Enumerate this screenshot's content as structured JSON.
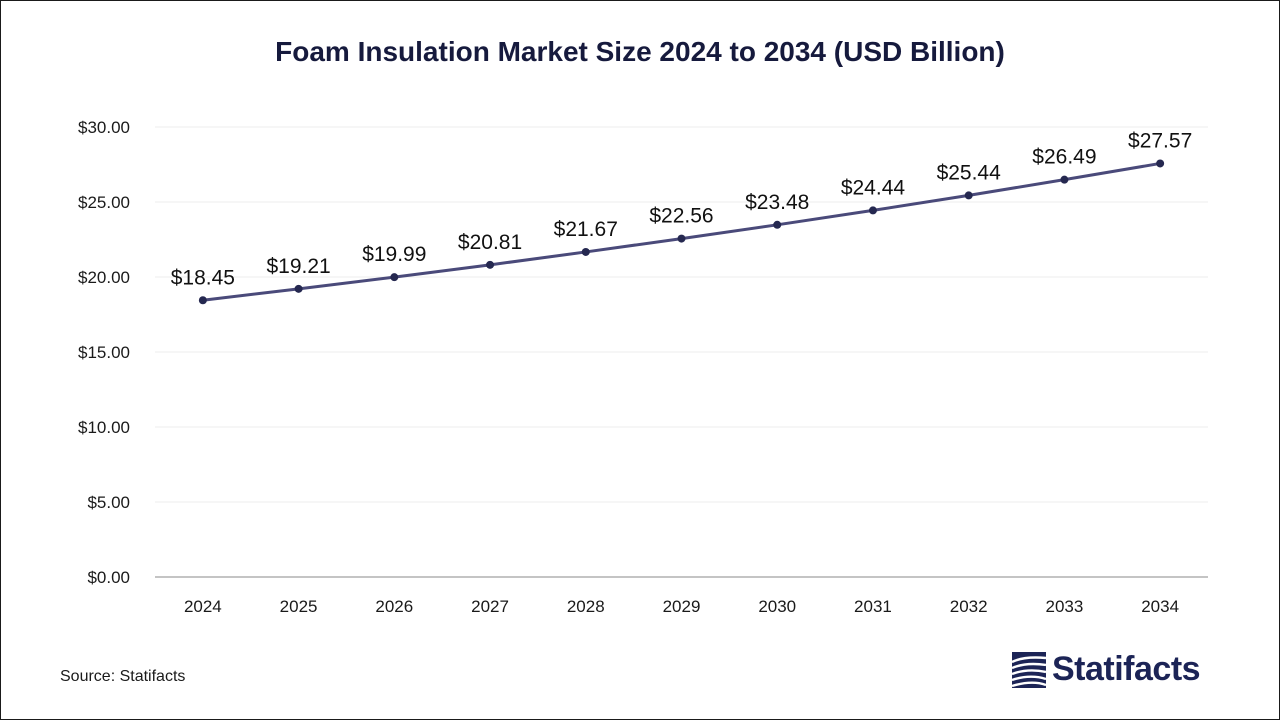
{
  "chart_data": {
    "type": "line",
    "title": "Foam Insulation Market Size 2024 to 2034 (USD Billion)",
    "xlabel": "",
    "ylabel": "",
    "categories": [
      "2024",
      "2025",
      "2026",
      "2027",
      "2028",
      "2029",
      "2030",
      "2031",
      "2032",
      "2033",
      "2034"
    ],
    "series": [
      {
        "values": [
          18.45,
          19.21,
          19.99,
          20.81,
          21.67,
          22.56,
          23.48,
          24.44,
          25.44,
          26.49,
          27.57
        ],
        "data_labels": [
          "$18.45",
          "$19.21",
          "$19.99",
          "$20.81",
          "$21.67",
          "$22.56",
          "$23.48",
          "$24.44",
          "$25.44",
          "$26.49",
          "$27.57"
        ]
      }
    ],
    "yticks": [
      0,
      5,
      10,
      15,
      20,
      25,
      30
    ],
    "ytick_labels": [
      "$0.00",
      "$5.00",
      "$10.00",
      "$15.00",
      "$20.00",
      "$25.00",
      "$30.00"
    ],
    "ylim": [
      0,
      30
    ],
    "grid": true,
    "legend": "none",
    "line_color": "#4a4a7a",
    "marker_color": "#252850"
  },
  "footer": {
    "source": "Source: Statifacts",
    "brand": "Statifacts",
    "brand_icon": "statifacts-logo-icon",
    "brand_color": "#1c2456"
  }
}
